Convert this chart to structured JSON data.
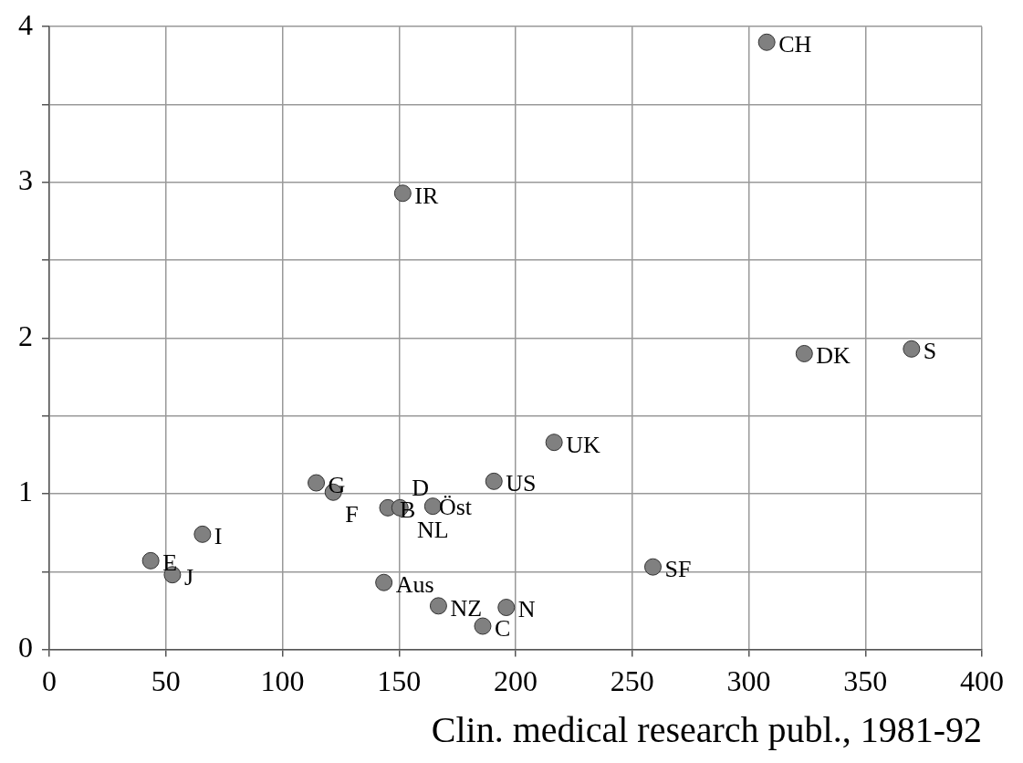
{
  "chart_data": {
    "type": "scatter",
    "xlabel": "Clin. medical research publ., 1981-92",
    "x": [
      307.7,
      151.6,
      323.8,
      369.8,
      216.5,
      190.7,
      114.5,
      121.8,
      145.2,
      150.4,
      162,
      164.5,
      65.7,
      43.5,
      52.8,
      143.5,
      166.9,
      196,
      185.9,
      258.9
    ],
    "series": [
      {
        "color": "#808080",
        "values": [
          3.9,
          2.93,
          1.9,
          1.93,
          1.33,
          1.08,
          1.07,
          1.01,
          0.91,
          0.91,
          null,
          0.92,
          0.74,
          0.57,
          0.48,
          0.43,
          0.28,
          0.27,
          0.15,
          0.53
        ]
      }
    ],
    "annotations": [
      {
        "text": "CH",
        "x": 307.7,
        "y": 3.9
      },
      {
        "text": "IR",
        "x": 151.6,
        "y": 2.93
      },
      {
        "text": "DK",
        "x": 323.8,
        "y": 1.9
      },
      {
        "text": "S",
        "x": 369.8,
        "y": 1.93
      },
      {
        "text": "UK",
        "x": 216.5,
        "y": 1.33
      },
      {
        "text": "US",
        "x": 190.7,
        "y": 1.08
      },
      {
        "text": "G",
        "x": 114.5,
        "y": 1.07
      },
      {
        "text": "F",
        "x": 121.8,
        "y": 1.01
      },
      {
        "text": "B",
        "x": 145.2,
        "y": 0.91
      },
      {
        "text": "D",
        "x": 150.4,
        "y": 0.91
      },
      {
        "text": "Öst",
        "x": 162,
        "y": 0.93
      },
      {
        "text": "NL",
        "x": 164.5,
        "y": 0.92
      },
      {
        "text": "I",
        "x": 65.7,
        "y": 0.74
      },
      {
        "text": "E",
        "x": 43.5,
        "y": 0.57
      },
      {
        "text": "J",
        "x": 52.8,
        "y": 0.48
      },
      {
        "text": "Aus",
        "x": 143.5,
        "y": 0.43
      },
      {
        "text": "NZ",
        "x": 166.9,
        "y": 0.28
      },
      {
        "text": "N",
        "x": 196,
        "y": 0.27
      },
      {
        "text": "C",
        "x": 185.9,
        "y": 0.15
      },
      {
        "text": "SF",
        "x": 258.9,
        "y": 0.53
      }
    ],
    "xlim": [
      0,
      400
    ],
    "xticks": [
      0,
      50,
      100,
      150,
      200,
      250,
      300,
      350,
      400
    ],
    "ylim": [
      0,
      4
    ],
    "yticks": [
      0,
      {
        "value": 0.5,
        "label": null
      },
      1,
      {
        "value": 1.5,
        "label": null
      },
      2,
      {
        "value": 2.5,
        "label": null
      },
      3,
      {
        "value": 3.5,
        "label": null
      },
      4
    ],
    "grid": true,
    "marker": "circle",
    "legend": false
  }
}
